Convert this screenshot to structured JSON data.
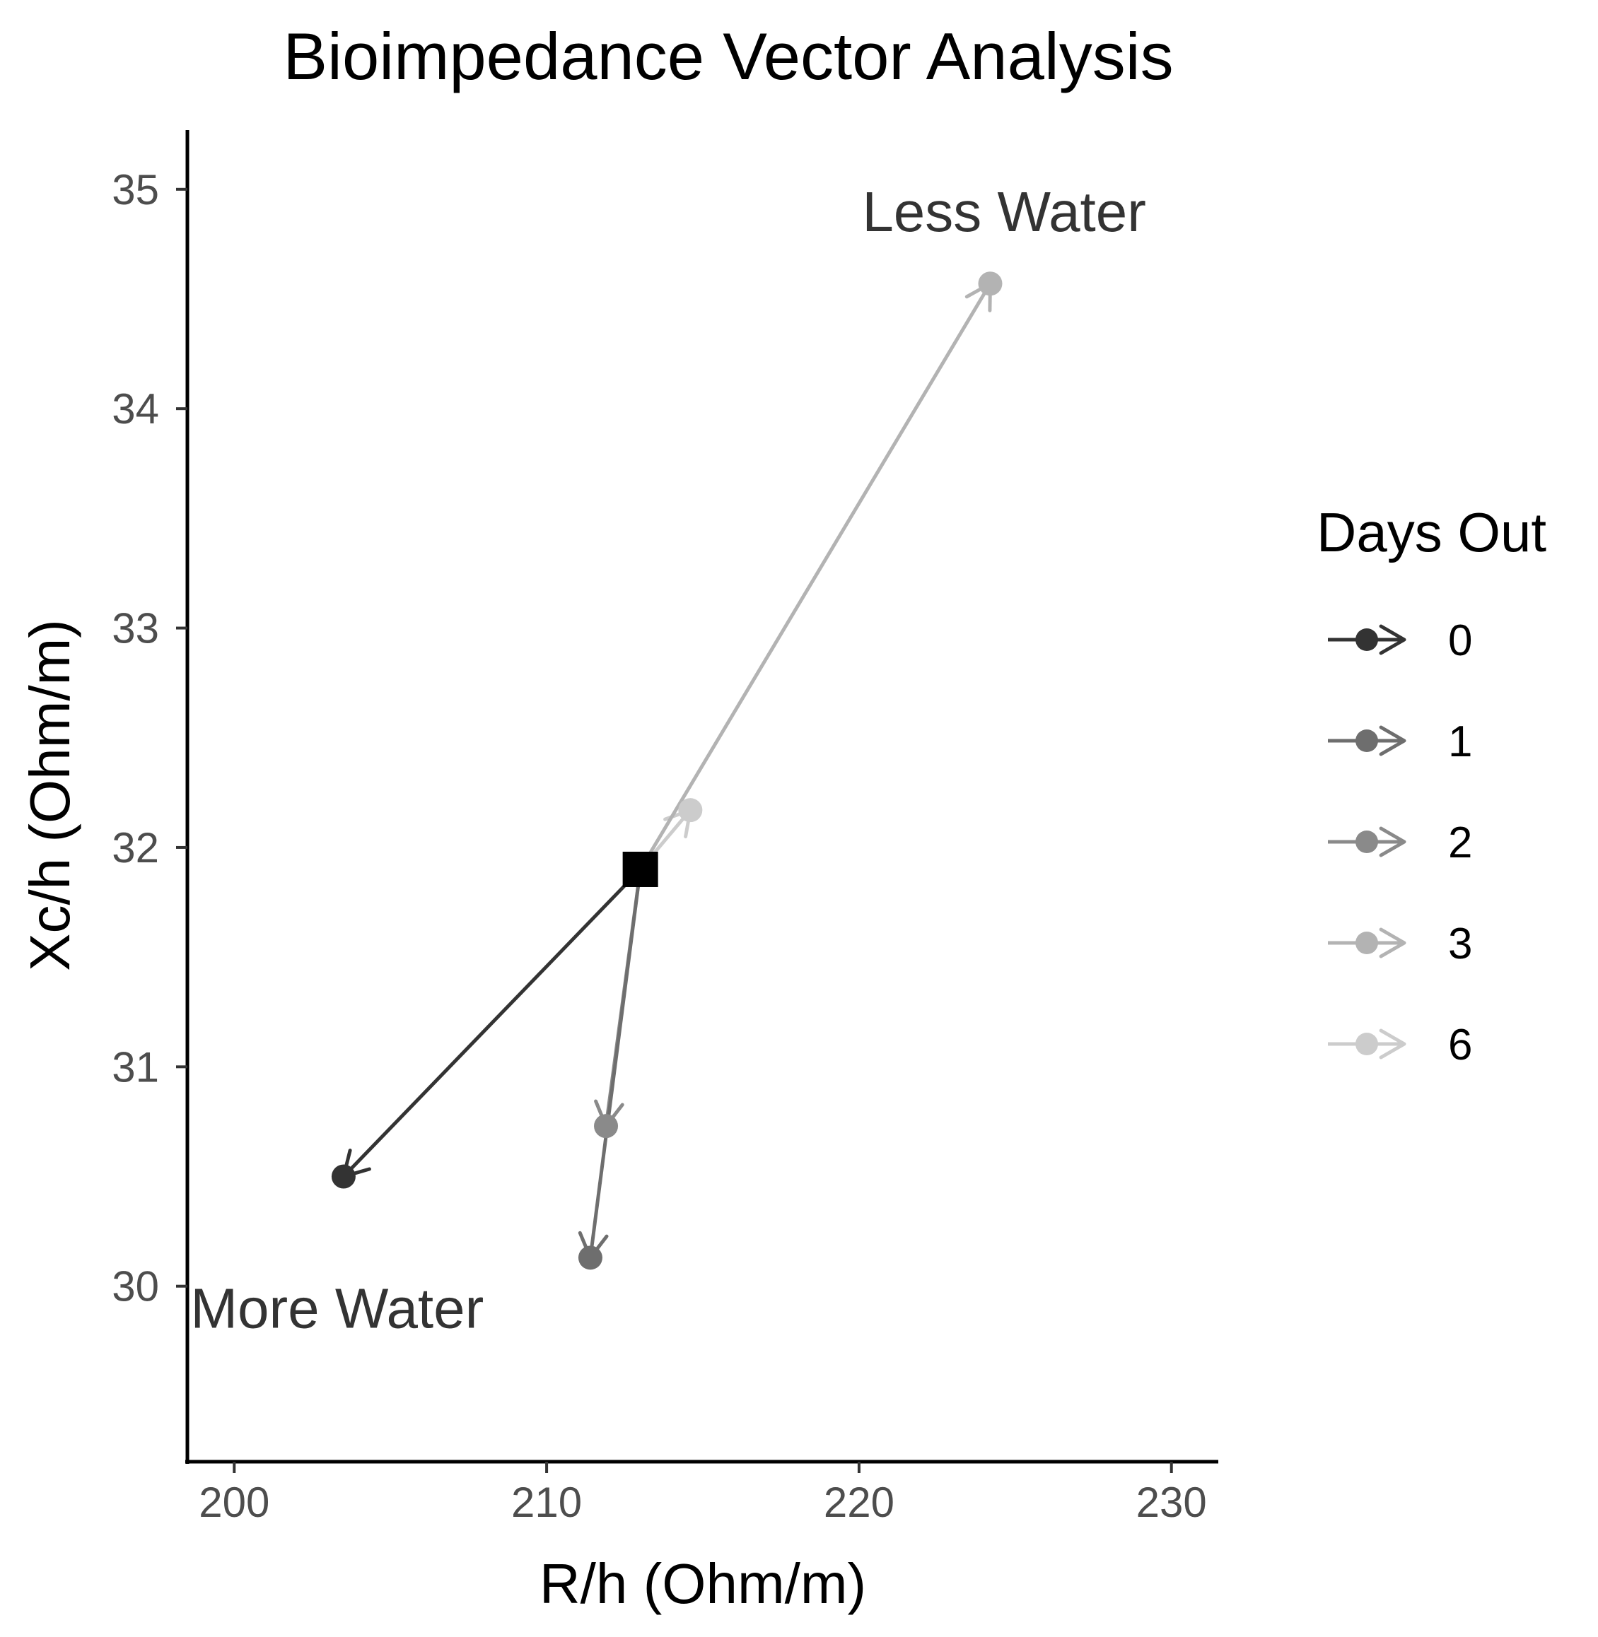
{
  "chart_data": {
    "type": "scatter",
    "title": "Bioimpedance Vector Analysis",
    "xlabel": "R/h (Ohm/m)",
    "ylabel": "Xc/h (Ohm/m)",
    "xlim": [
      198.5,
      231.5
    ],
    "ylim": [
      29.2,
      35.27
    ],
    "x_ticks": [
      200,
      210,
      220,
      230
    ],
    "y_ticks": [
      30,
      31,
      32,
      33,
      34,
      35
    ],
    "x_tick_labels": [
      "200",
      "210",
      "220",
      "230"
    ],
    "y_tick_labels": [
      "30",
      "31",
      "32",
      "33",
      "34",
      "35"
    ],
    "grid": false,
    "origin": {
      "x": 213.0,
      "y": 31.9,
      "marker": "square",
      "color": "#000000"
    },
    "legend": {
      "title": "Days Out",
      "position": "right"
    },
    "series": [
      {
        "name": "0",
        "x": 203.5,
        "y": 30.5,
        "color": "#333333"
      },
      {
        "name": "1",
        "x": 211.4,
        "y": 30.13,
        "color": "#6e6e6e"
      },
      {
        "name": "2",
        "x": 211.9,
        "y": 30.73,
        "color": "#8a8a8a"
      },
      {
        "name": "3",
        "x": 224.2,
        "y": 34.57,
        "color": "#b3b3b3"
      },
      {
        "name": "6",
        "x": 214.6,
        "y": 32.17,
        "color": "#cccccc"
      }
    ],
    "annotations": [
      {
        "text": "Less Water",
        "x": 220.1,
        "y": 34.9
      },
      {
        "text": "More Water",
        "x": 198.6,
        "y": 29.9
      }
    ]
  }
}
